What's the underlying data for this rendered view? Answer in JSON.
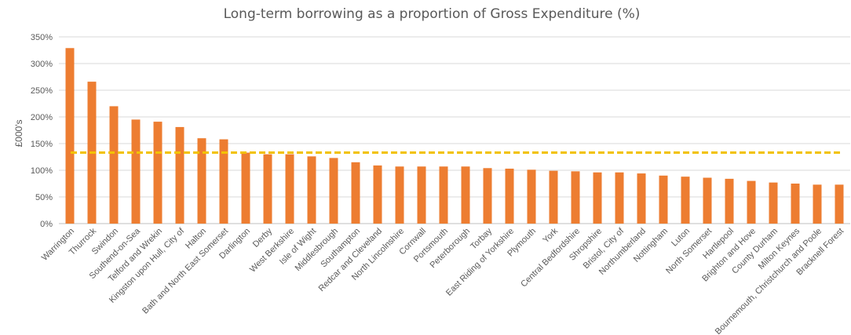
{
  "chart_data": {
    "type": "bar",
    "title": "Long-term borrowing as a proportion of Gross Expenditure (%)",
    "ylabel": "£000's",
    "xlabel": "",
    "ylim": [
      0,
      350
    ],
    "yticks": [
      "0%",
      "50%",
      "100%",
      "150%",
      "200%",
      "250%",
      "300%",
      "350%"
    ],
    "grid": true,
    "bar_color": "#ED7D31",
    "reference_line": {
      "value": 133,
      "color": "#F2C200",
      "style": "dashed"
    },
    "categories": [
      "Warrington",
      "Thurrock",
      "Swindon",
      "Southend-on-Sea",
      "Telford and Wrekin",
      "Kingston upon Hull, City of",
      "Halton",
      "Bath and North East Somerset",
      "Darlington",
      "Derby",
      "West Berkshire",
      "Isle of Wight",
      "Middlesbrough",
      "Southampton",
      "Redcar and Cleveland",
      "North Lincolnshire",
      "Cornwall",
      "Portsmouth",
      "Peterborough",
      "Torbay",
      "East Riding of Yorkshire",
      "Plymouth",
      "York",
      "Central Bedfordshire",
      "Shropshire",
      "Bristol, City of",
      "Northumberland",
      "Nottingham",
      "Luton",
      "North Somerset",
      "Hartlepool",
      "Brighton and Hove",
      "County Durham",
      "Milton Keynes",
      "Bournemouth, Christchurch and Poole",
      "Bracknell Forest"
    ],
    "values": [
      329,
      266,
      220,
      195,
      191,
      181,
      160,
      158,
      133,
      130,
      130,
      126,
      123,
      115,
      109,
      107,
      107,
      107,
      107,
      104,
      103,
      101,
      99,
      98,
      96,
      96,
      94,
      90,
      88,
      86,
      84,
      80,
      77,
      75,
      73,
      73
    ]
  }
}
